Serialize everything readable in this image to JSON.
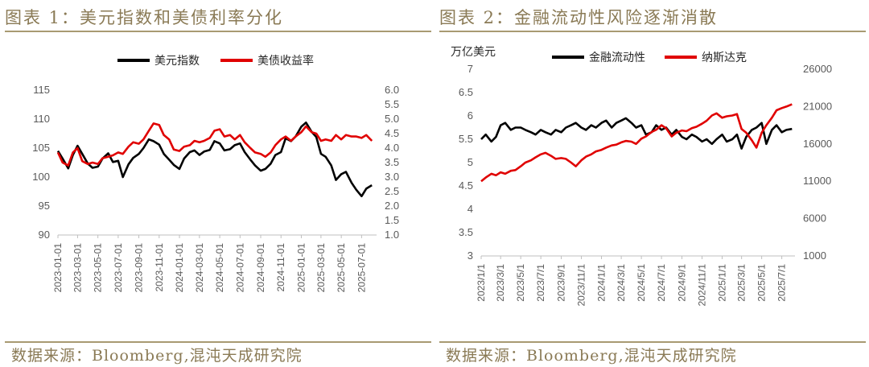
{
  "figures": [
    {
      "title": "图表 1：美元指数和美债利率分化",
      "source": "数据来源：Bloomberg,混沌天成研究院"
    },
    {
      "title": "图表 2：金融流动性风险逐渐消散",
      "source": "数据来源：Bloomberg,混沌天成研究院"
    }
  ],
  "colors": {
    "series_black": "#000000",
    "series_red": "#e00000",
    "frame": "#a89a72",
    "caption": "#8a7a55"
  },
  "chart_data": [
    {
      "type": "line",
      "title": "",
      "x_ticks": [
        "2023-01-01",
        "2023-03-01",
        "2023-05-01",
        "2023-07-01",
        "2023-09-01",
        "2023-11-01",
        "2024-01-01",
        "2024-03-01",
        "2024-05-01",
        "2024-07-01",
        "2024-09-01",
        "2024-11-01",
        "2025-01-01",
        "2025-03-01",
        "2025-05-01",
        "2025-07-01"
      ],
      "y_left": {
        "ticks": [
          "90",
          "95",
          "100",
          "105",
          "110",
          "115"
        ],
        "range": [
          90,
          115
        ]
      },
      "y_right": {
        "ticks": [
          "1.0",
          "1.5",
          "2.0",
          "2.5",
          "3.0",
          "3.5",
          "4.0",
          "4.5",
          "5.0",
          "5.5",
          "6.0"
        ],
        "range": [
          1.0,
          6.0
        ]
      },
      "legend_position": "top",
      "grid": false,
      "series": [
        {
          "name": "美元指数",
          "axis": "left",
          "color": "#000000",
          "x": [
            "2023-01-01",
            "2023-01-15",
            "2023-02-01",
            "2023-02-15",
            "2023-03-01",
            "2023-03-15",
            "2023-04-01",
            "2023-04-15",
            "2023-05-01",
            "2023-05-15",
            "2023-06-01",
            "2023-06-15",
            "2023-07-01",
            "2023-07-15",
            "2023-08-01",
            "2023-08-15",
            "2023-09-01",
            "2023-09-15",
            "2023-10-01",
            "2023-10-15",
            "2023-11-01",
            "2023-11-15",
            "2023-12-01",
            "2023-12-15",
            "2024-01-01",
            "2024-01-15",
            "2024-02-01",
            "2024-02-15",
            "2024-03-01",
            "2024-03-15",
            "2024-04-01",
            "2024-04-15",
            "2024-05-01",
            "2024-05-15",
            "2024-06-01",
            "2024-06-15",
            "2024-07-01",
            "2024-07-15",
            "2024-08-01",
            "2024-08-15",
            "2024-09-01",
            "2024-09-15",
            "2024-10-01",
            "2024-10-15",
            "2024-11-01",
            "2024-11-15",
            "2024-12-01",
            "2024-12-15",
            "2025-01-01",
            "2025-01-15",
            "2025-02-01",
            "2025-02-15",
            "2025-03-01",
            "2025-03-15",
            "2025-04-01",
            "2025-04-15",
            "2025-05-01",
            "2025-05-15",
            "2025-06-01",
            "2025-06-15",
            "2025-07-01",
            "2025-07-15",
            "2025-08-01"
          ],
          "y": [
            104.5,
            103.2,
            101.5,
            103.8,
            105.4,
            104.0,
            102.3,
            101.6,
            101.8,
            103.2,
            104.1,
            102.6,
            102.8,
            100.0,
            102.2,
            103.3,
            104.0,
            105.0,
            106.5,
            106.2,
            105.6,
            104.0,
            103.0,
            102.1,
            101.4,
            103.2,
            104.3,
            104.6,
            103.8,
            104.4,
            104.7,
            106.2,
            105.8,
            104.6,
            104.8,
            105.5,
            105.8,
            104.3,
            103.0,
            102.0,
            101.1,
            101.4,
            102.3,
            103.8,
            104.3,
            106.7,
            106.2,
            107.0,
            108.7,
            109.4,
            107.8,
            106.9,
            104.0,
            103.5,
            102.0,
            99.5,
            100.5,
            100.9,
            99.0,
            97.8,
            96.7,
            98.0,
            98.6
          ]
        },
        {
          "name": "美债收益率",
          "axis": "right",
          "color": "#e00000",
          "x": [
            "2023-01-01",
            "2023-01-15",
            "2023-02-01",
            "2023-02-15",
            "2023-03-01",
            "2023-03-15",
            "2023-04-01",
            "2023-04-15",
            "2023-05-01",
            "2023-05-15",
            "2023-06-01",
            "2023-06-15",
            "2023-07-01",
            "2023-07-15",
            "2023-08-01",
            "2023-08-15",
            "2023-09-01",
            "2023-09-15",
            "2023-10-01",
            "2023-10-15",
            "2023-11-01",
            "2023-11-15",
            "2023-12-01",
            "2023-12-15",
            "2024-01-01",
            "2024-01-15",
            "2024-02-01",
            "2024-02-15",
            "2024-03-01",
            "2024-03-15",
            "2024-04-01",
            "2024-04-15",
            "2024-05-01",
            "2024-05-15",
            "2024-06-01",
            "2024-06-15",
            "2024-07-01",
            "2024-07-15",
            "2024-08-01",
            "2024-08-15",
            "2024-09-01",
            "2024-09-15",
            "2024-10-01",
            "2024-10-15",
            "2024-11-01",
            "2024-11-15",
            "2024-12-01",
            "2024-12-15",
            "2025-01-01",
            "2025-01-15",
            "2025-02-01",
            "2025-02-15",
            "2025-03-01",
            "2025-03-15",
            "2025-04-01",
            "2025-04-15",
            "2025-05-01",
            "2025-05-15",
            "2025-06-01",
            "2025-06-15",
            "2025-07-01",
            "2025-07-15",
            "2025-08-01"
          ],
          "y": [
            3.85,
            3.5,
            3.4,
            3.85,
            4.0,
            3.55,
            3.45,
            3.5,
            3.45,
            3.65,
            3.7,
            3.75,
            3.85,
            3.8,
            4.05,
            4.2,
            4.15,
            4.3,
            4.6,
            4.85,
            4.8,
            4.45,
            4.3,
            3.95,
            3.9,
            4.05,
            4.1,
            4.25,
            4.2,
            4.25,
            4.35,
            4.6,
            4.65,
            4.4,
            4.45,
            4.3,
            4.45,
            4.2,
            4.0,
            3.85,
            3.8,
            3.7,
            3.85,
            4.1,
            4.3,
            4.4,
            4.25,
            4.4,
            4.55,
            4.75,
            4.55,
            4.5,
            4.25,
            4.3,
            4.25,
            4.45,
            4.3,
            4.45,
            4.4,
            4.4,
            4.35,
            4.45,
            4.25
          ]
        }
      ]
    },
    {
      "type": "line",
      "title": "",
      "x_ticks": [
        "2023/1/1",
        "2023/3/1",
        "2023/5/1",
        "2023/7/1",
        "2023/9/1",
        "2023/11/1",
        "2024/1/1",
        "2024/3/1",
        "2024/5/1",
        "2024/7/1",
        "2024/9/1",
        "2024/11/1",
        "2025/1/1",
        "2025/3/1",
        "2025/5/1",
        "2025/7/1"
      ],
      "y_left": {
        "ticks": [
          "3",
          "3.5",
          "4",
          "4.5",
          "5",
          "5.5",
          "6",
          "6.5",
          "7"
        ],
        "range": [
          3,
          7
        ],
        "unit": "万亿美元"
      },
      "y_right": {
        "ticks": [
          "1000",
          "6000",
          "11000",
          "16000",
          "21000",
          "26000"
        ],
        "range": [
          1000,
          26000
        ]
      },
      "legend_position": "top",
      "grid": false,
      "series": [
        {
          "name": "金融流动性",
          "axis": "left",
          "color": "#000000",
          "x": [
            "2023/1/1",
            "2023/1/15",
            "2023/2/1",
            "2023/2/15",
            "2023/3/1",
            "2023/3/15",
            "2023/4/1",
            "2023/4/15",
            "2023/5/1",
            "2023/5/15",
            "2023/6/1",
            "2023/6/15",
            "2023/7/1",
            "2023/7/15",
            "2023/8/1",
            "2023/8/15",
            "2023/9/1",
            "2023/9/15",
            "2023/10/1",
            "2023/10/15",
            "2023/11/1",
            "2023/11/15",
            "2023/12/1",
            "2023/12/15",
            "2024/1/1",
            "2024/1/15",
            "2024/2/1",
            "2024/2/15",
            "2024/3/1",
            "2024/3/15",
            "2024/4/1",
            "2024/4/15",
            "2024/5/1",
            "2024/5/15",
            "2024/6/1",
            "2024/6/15",
            "2024/7/1",
            "2024/7/15",
            "2024/8/1",
            "2024/8/15",
            "2024/9/1",
            "2024/9/15",
            "2024/10/1",
            "2024/10/15",
            "2024/11/1",
            "2024/11/15",
            "2024/12/1",
            "2024/12/15",
            "2025/1/1",
            "2025/1/15",
            "2025/2/1",
            "2025/2/15",
            "2025/3/1",
            "2025/3/15",
            "2025/4/1",
            "2025/4/15",
            "2025/5/1",
            "2025/5/15",
            "2025/6/1",
            "2025/6/15",
            "2025/7/1",
            "2025/7/15",
            "2025/8/1"
          ],
          "y": [
            5.5,
            5.6,
            5.45,
            5.55,
            5.8,
            5.85,
            5.7,
            5.75,
            5.75,
            5.7,
            5.65,
            5.6,
            5.7,
            5.65,
            5.6,
            5.7,
            5.65,
            5.75,
            5.8,
            5.85,
            5.75,
            5.7,
            5.8,
            5.75,
            5.85,
            5.9,
            5.75,
            5.85,
            5.9,
            5.95,
            5.85,
            5.75,
            5.8,
            5.6,
            5.65,
            5.8,
            5.7,
            5.75,
            5.6,
            5.7,
            5.55,
            5.5,
            5.6,
            5.55,
            5.45,
            5.5,
            5.4,
            5.5,
            5.6,
            5.45,
            5.5,
            5.6,
            5.3,
            5.55,
            5.7,
            5.75,
            5.85,
            5.4,
            5.7,
            5.8,
            5.65,
            5.7,
            5.72
          ]
        },
        {
          "name": "纳斯达克",
          "axis": "right",
          "color": "#e00000",
          "x": [
            "2023/1/1",
            "2023/1/15",
            "2023/2/1",
            "2023/2/15",
            "2023/3/1",
            "2023/3/15",
            "2023/4/1",
            "2023/4/15",
            "2023/5/1",
            "2023/5/15",
            "2023/6/1",
            "2023/6/15",
            "2023/7/1",
            "2023/7/15",
            "2023/8/1",
            "2023/8/15",
            "2023/9/1",
            "2023/9/15",
            "2023/10/1",
            "2023/10/15",
            "2023/11/1",
            "2023/11/15",
            "2023/12/1",
            "2023/12/15",
            "2024/1/1",
            "2024/1/15",
            "2024/2/1",
            "2024/2/15",
            "2024/3/1",
            "2024/3/15",
            "2024/4/1",
            "2024/4/15",
            "2024/5/1",
            "2024/5/15",
            "2024/6/1",
            "2024/6/15",
            "2024/7/1",
            "2024/7/15",
            "2024/8/1",
            "2024/8/15",
            "2024/9/1",
            "2024/9/15",
            "2024/10/1",
            "2024/10/15",
            "2024/11/1",
            "2024/11/15",
            "2024/12/1",
            "2024/12/15",
            "2025/1/1",
            "2025/1/15",
            "2025/2/1",
            "2025/2/15",
            "2025/3/1",
            "2025/3/15",
            "2025/4/1",
            "2025/4/15",
            "2025/5/1",
            "2025/5/15",
            "2025/6/1",
            "2025/6/15",
            "2025/7/1",
            "2025/7/15",
            "2025/8/1"
          ],
          "y": [
            11000,
            11500,
            12000,
            11800,
            12200,
            12000,
            12400,
            12500,
            13000,
            13500,
            13800,
            14200,
            14600,
            14800,
            14400,
            14000,
            14100,
            14000,
            13500,
            13000,
            13800,
            14300,
            14600,
            15000,
            15200,
            15500,
            15800,
            15900,
            16200,
            16400,
            16300,
            16000,
            16700,
            17000,
            17600,
            17900,
            18500,
            18100,
            17000,
            17500,
            17800,
            17700,
            18100,
            18300,
            18700,
            19100,
            19800,
            20100,
            19500,
            19700,
            19800,
            20000,
            18000,
            17500,
            16500,
            15500,
            17500,
            18500,
            19500,
            20500,
            20800,
            21000,
            21300
          ]
        }
      ]
    }
  ]
}
